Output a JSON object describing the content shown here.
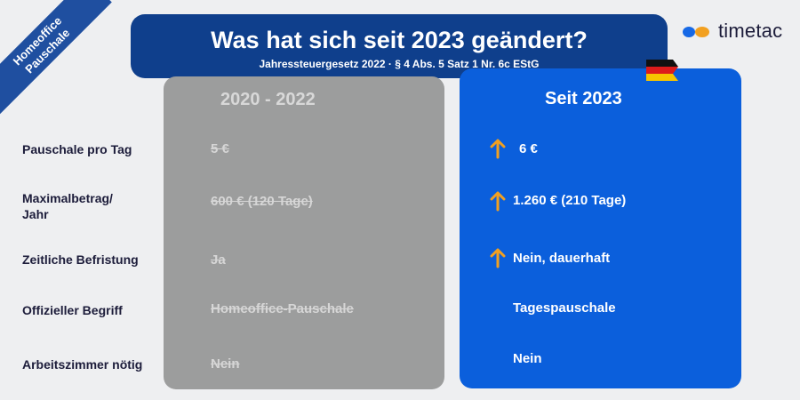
{
  "ribbon": {
    "line1": "Homeoffice",
    "line2": "Pauschale"
  },
  "header": {
    "title": "Was hat sich seit 2023 geändert?",
    "subtitle": "Jahressteuergesetz 2022 · § 4 Abs. 5 Satz 1 Nr. 6c EStG"
  },
  "logo": {
    "text": "timetac"
  },
  "columns": {
    "old": "2020 - 2022",
    "new": "Seit 2023"
  },
  "colors": {
    "navy": "#0f3f8c",
    "blue": "#0b5fdc",
    "gray": "#9c9d9d",
    "arrow": "#f2a020"
  },
  "rows": [
    {
      "label": "Pauschale pro Tag",
      "old": "5 €",
      "new": "6 €",
      "arrow": true
    },
    {
      "label_line1": "Maximalbetrag/",
      "label_line2": "Jahr",
      "old": "600 € (120 Tage)",
      "new": "1.260 € (210 Tage)",
      "arrow": true
    },
    {
      "label": "Zeitliche Befristung",
      "old": "Ja",
      "new": "Nein, dauerhaft",
      "arrow": true
    },
    {
      "label": "Offizieller Begriff",
      "old": "Homeoffice-Pauschale",
      "new": "Tagespauschale",
      "arrow": false
    },
    {
      "label": "Arbeitszimmer nötig",
      "old": "Nein",
      "new": "Nein",
      "arrow": false
    }
  ]
}
